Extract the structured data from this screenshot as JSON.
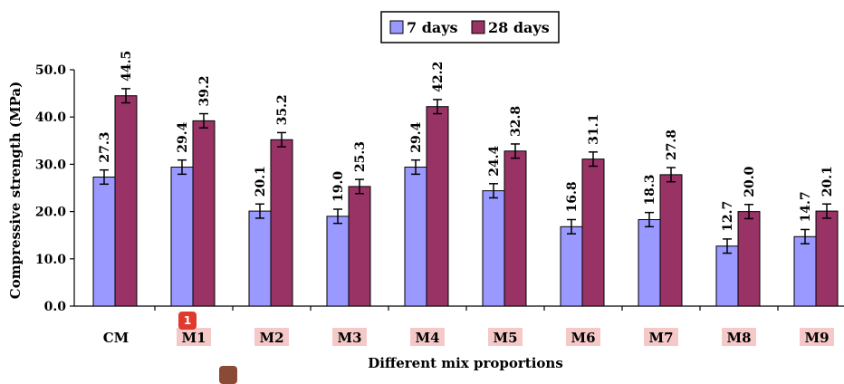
{
  "colors": {
    "series_7": "#9999ff",
    "series_28": "#993366",
    "highlight": "#f6c9c9",
    "badge": "#e03a2e",
    "badge_secondary": "#8b4a36"
  },
  "badges": {
    "first_label": "1"
  },
  "chart_data": {
    "type": "bar",
    "categories": [
      "CM",
      "M1",
      "M2",
      "M3",
      "M4",
      "M5",
      "M6",
      "M7",
      "M8",
      "M9"
    ],
    "highlighted_categories": [
      "M1",
      "M2",
      "M3",
      "M4",
      "M5",
      "M6",
      "M7",
      "M8",
      "M9"
    ],
    "series": [
      {
        "name": "7 days",
        "values": [
          27.3,
          29.4,
          20.1,
          19.0,
          29.4,
          24.4,
          16.8,
          18.3,
          12.7,
          14.7
        ],
        "labels": [
          "27.3",
          "29.4",
          "20.1",
          "19.0",
          "29.4",
          "24.4",
          "16.8",
          "18.3",
          "12.7",
          "14.7"
        ]
      },
      {
        "name": "28 days",
        "values": [
          44.5,
          39.2,
          35.2,
          25.3,
          42.2,
          32.8,
          31.1,
          27.8,
          20.0,
          20.1
        ],
        "labels": [
          "44.5",
          "39.2",
          "35.2",
          "25.3",
          "42.2",
          "32.8",
          "31.1",
          "27.8",
          "20.0",
          "20.1"
        ]
      }
    ],
    "error_bars": true,
    "error": 1.5,
    "xlabel": "Different mix proportions",
    "ylabel": "Compressive strength (MPa)",
    "ylim": [
      0,
      50
    ],
    "yticks": [
      "0.0",
      "10.0",
      "20.0",
      "30.0",
      "40.0",
      "50.0"
    ],
    "grid": false,
    "legend": "top-center"
  }
}
